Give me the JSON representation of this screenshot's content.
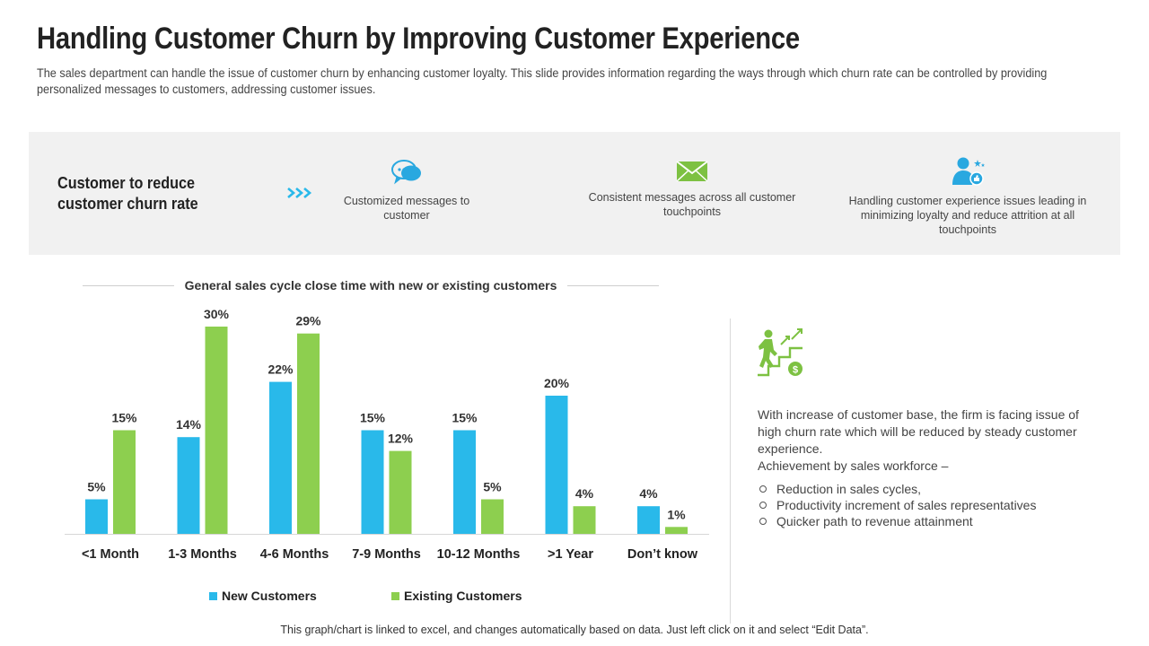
{
  "page": {
    "title": "Handling Customer Churn by Improving Customer Experience",
    "subtitle": "The sales department can handle the issue of customer churn by enhancing customer loyalty. This slide provides information regarding the ways through which churn rate can be controlled by providing personalized messages to customers, addressing customer issues.",
    "footer": "This graph/chart is linked to excel, and changes automatically based on data. Just left click on it and select “Edit Data”."
  },
  "band": {
    "title": "Customer to reduce customer churn rate",
    "steps": [
      {
        "icon": "chat-bubbles-icon",
        "label": "Customized messages  to customer"
      },
      {
        "icon": "envelope-icon",
        "label": "Consistent messages across all customer touchpoints"
      },
      {
        "icon": "user-support-icon",
        "label": "Handling customer experience issues leading in minimizing loyalty and reduce attrition at all touchpoints"
      }
    ]
  },
  "colors": {
    "new": "#29b9ea",
    "existing": "#8dcf4f",
    "chevron": "#29b9ea",
    "icon_blue": "#29a8e0",
    "icon_green": "#7dc142"
  },
  "chart_data": {
    "type": "bar",
    "title": "General sales cycle close time with new or existing customers",
    "categories": [
      "<1 Month",
      "1-3 Months",
      "4-6 Months",
      "7-9 Months",
      "10-12 Months",
      ">1 Year",
      "Don’t know"
    ],
    "series": [
      {
        "name": "New Customers",
        "values": [
          5,
          14,
          22,
          15,
          15,
          20,
          4
        ],
        "labels": [
          "5%",
          "14%",
          "22%",
          "15%",
          "15%",
          "20%",
          "4%"
        ]
      },
      {
        "name": "Existing Customers",
        "values": [
          15,
          30,
          29,
          12,
          5,
          4,
          1
        ],
        "labels": [
          "15%",
          "30%",
          "29%",
          "12%",
          "5%",
          "4%",
          "1%"
        ]
      }
    ],
    "ylim": [
      0,
      30
    ],
    "grid": false,
    "legend_position": "bottom"
  },
  "right_panel": {
    "icon": "growth-stairs-icon",
    "text": "With increase of customer base, the firm is facing issue of high churn rate which will be reduced by steady customer experience.",
    "text2": "Achievement by sales workforce –",
    "bullets": [
      "Reduction in sales cycles,",
      "Productivity increment of sales representatives",
      "Quicker path to revenue attainment"
    ]
  }
}
